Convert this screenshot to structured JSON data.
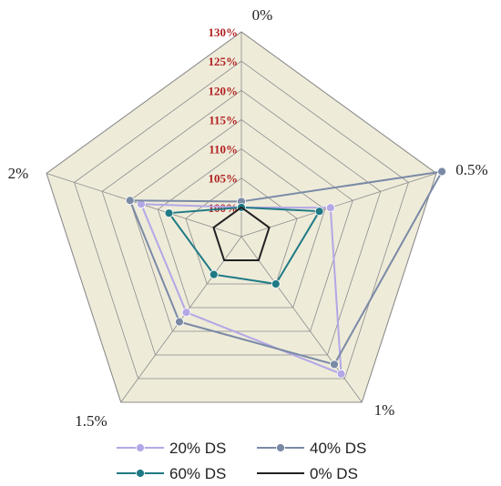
{
  "chart_data": {
    "type": "radar",
    "categories": [
      "0%",
      "0.5%",
      "1%",
      "1.5%",
      "2%"
    ],
    "r_ticks": [
      "100%",
      "105%",
      "110%",
      "115%",
      "120%",
      "125%",
      "130%"
    ],
    "rlim": [
      95,
      130
    ],
    "grid": true,
    "legend_position": "bottom",
    "series": [
      {
        "name": "20% DS",
        "color": "#b3a7e6",
        "values": [
          100,
          111,
          124,
          111,
          113
        ]
      },
      {
        "name": "40% DS",
        "color": "#7a8aa6",
        "values": [
          101,
          131,
          122,
          113,
          115
        ]
      },
      {
        "name": "60% DS",
        "color": "#1f7a85",
        "values": [
          100,
          109,
          105,
          103,
          108
        ]
      },
      {
        "name": "0% DS",
        "color": "#222222",
        "values": [
          100,
          100,
          100,
          100,
          100
        ]
      }
    ]
  }
}
